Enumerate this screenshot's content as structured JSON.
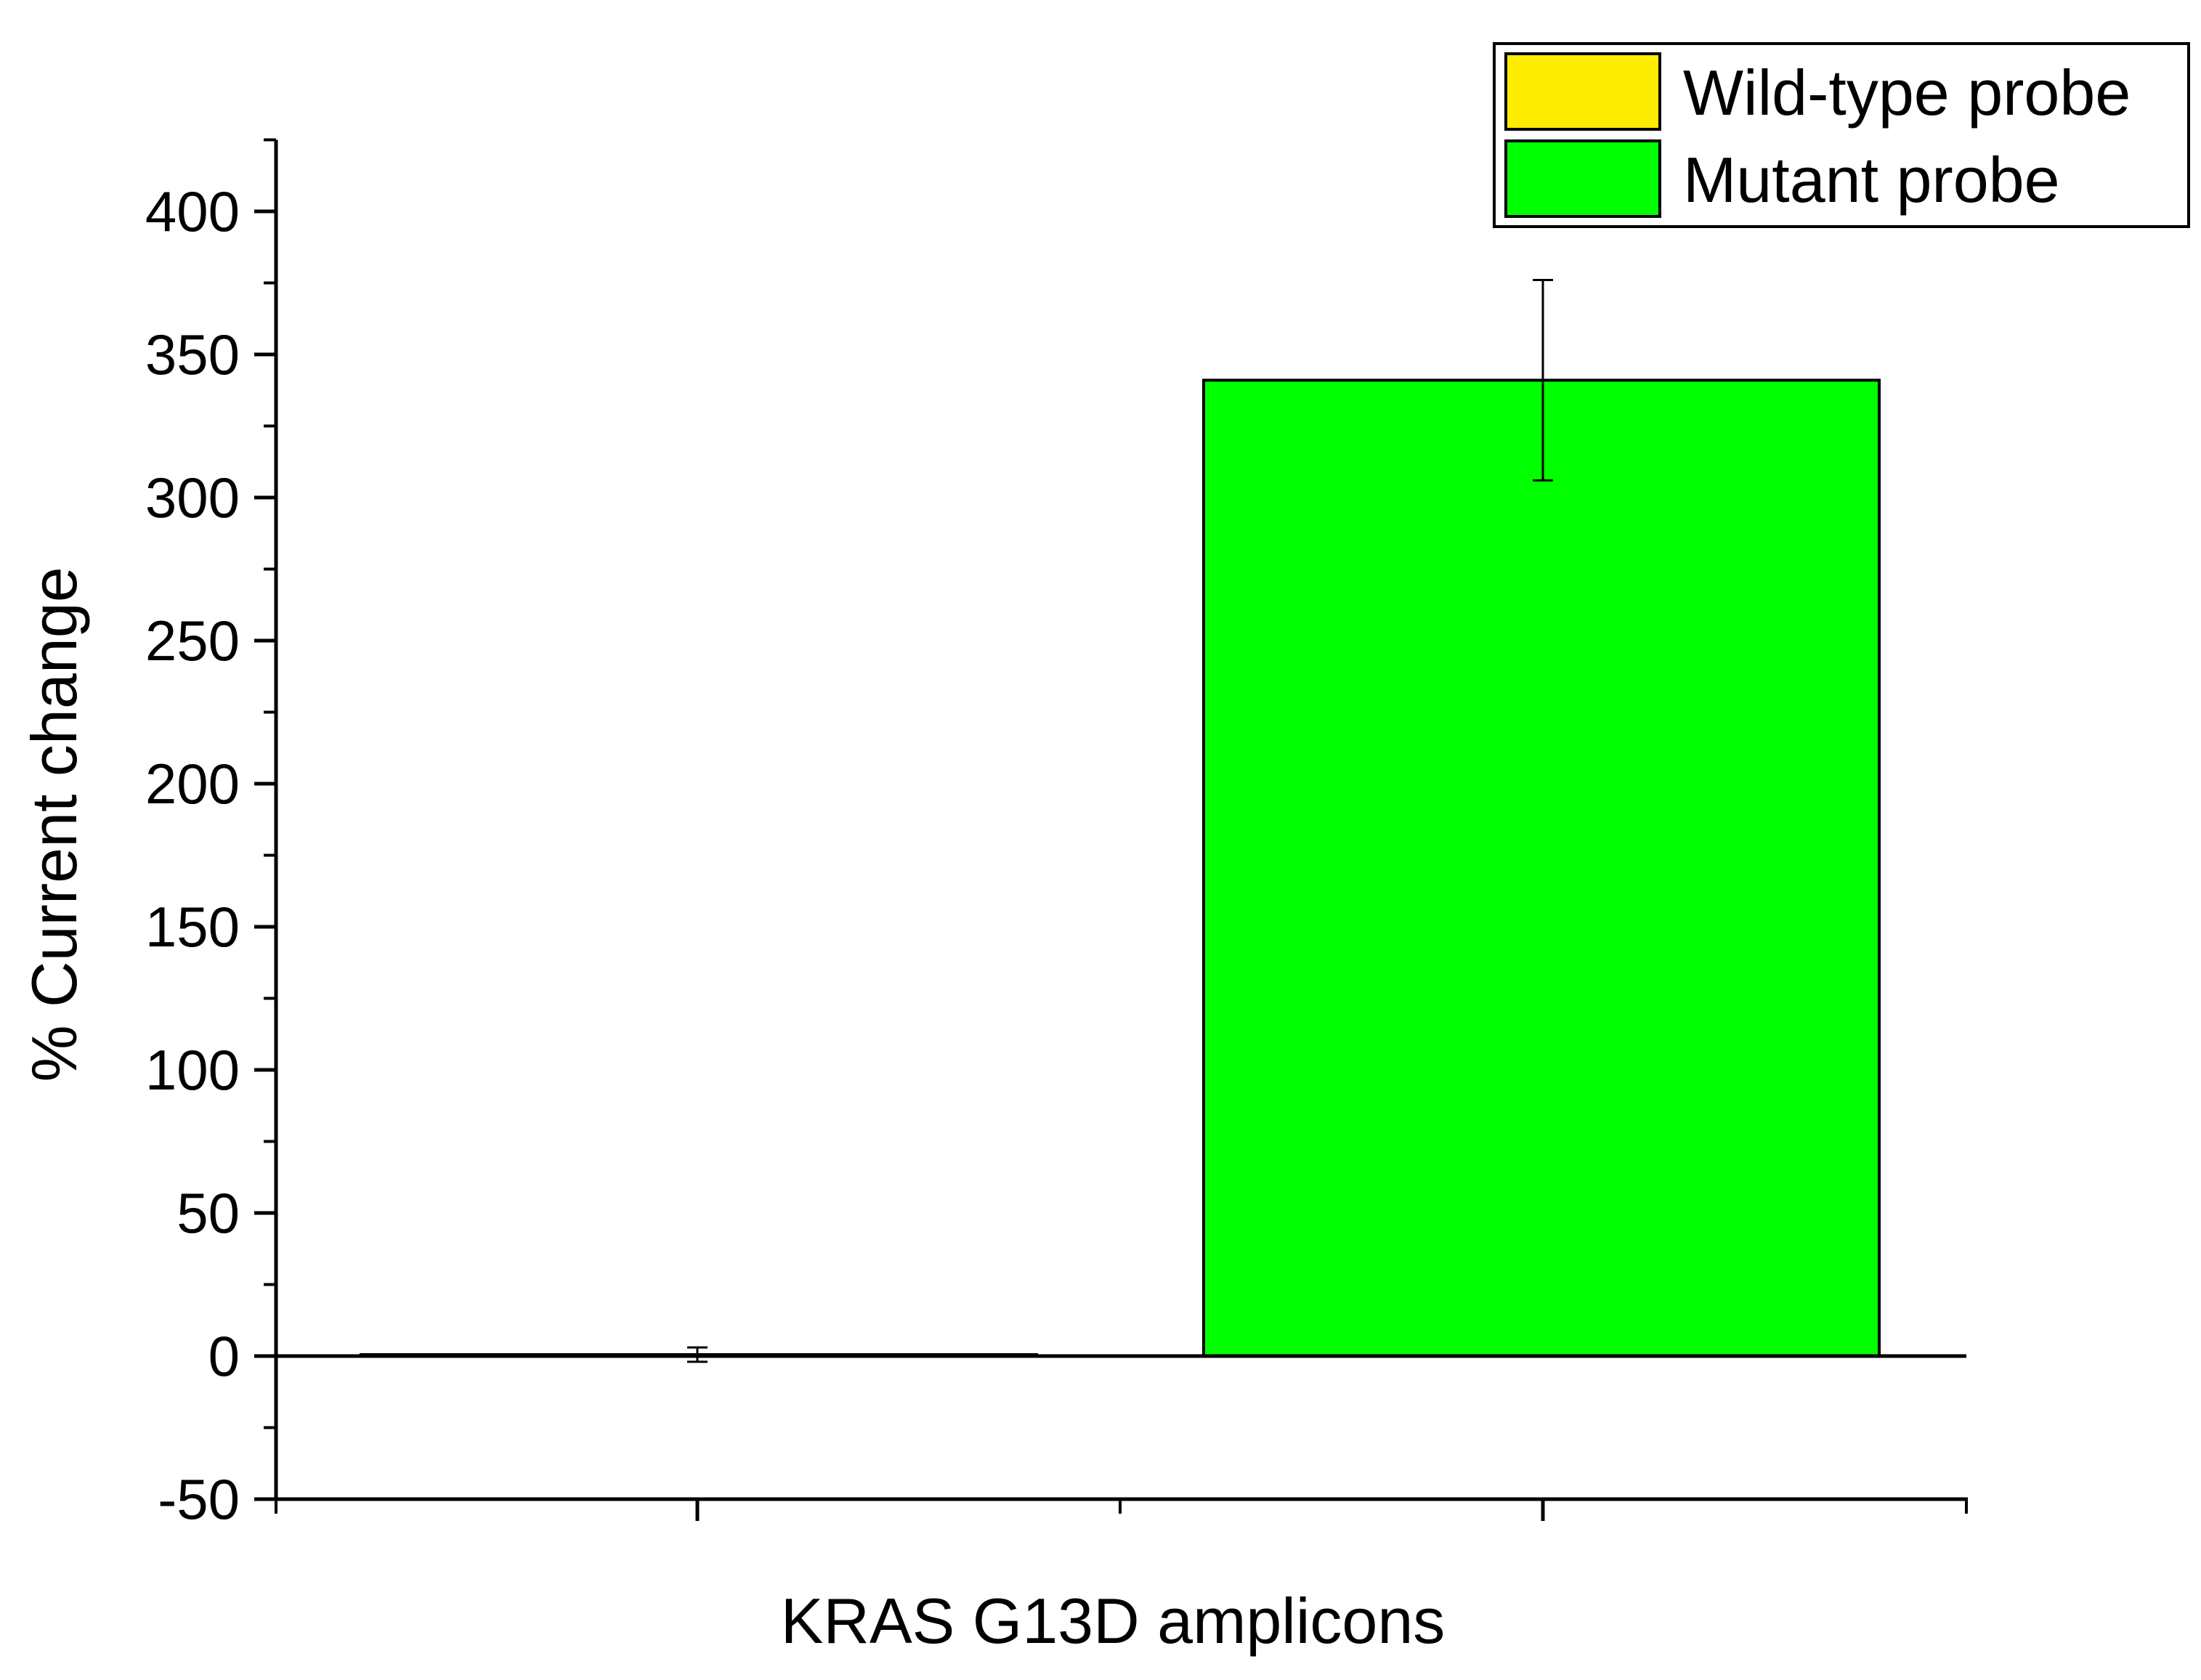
{
  "chart_data": {
    "type": "bar",
    "title": "",
    "xlabel": "KRAS G13D amplicons",
    "ylabel": "% Current change",
    "ylim": [
      -50,
      425
    ],
    "yticks": [
      -50,
      0,
      50,
      100,
      150,
      200,
      250,
      300,
      350,
      400
    ],
    "ytick_labels": [
      "-50",
      "0",
      "50",
      "100",
      "150",
      "200",
      "250",
      "300",
      "350",
      "400"
    ],
    "y_minor_step": 25,
    "grid": false,
    "legend_position": "top-right",
    "series": [
      {
        "name": "Wild-type probe",
        "value": 0.5,
        "error": 2.5,
        "color": "#FFED00"
      },
      {
        "name": "Mutant probe",
        "value": 341,
        "error": 35,
        "color": "#00FF00"
      }
    ]
  }
}
